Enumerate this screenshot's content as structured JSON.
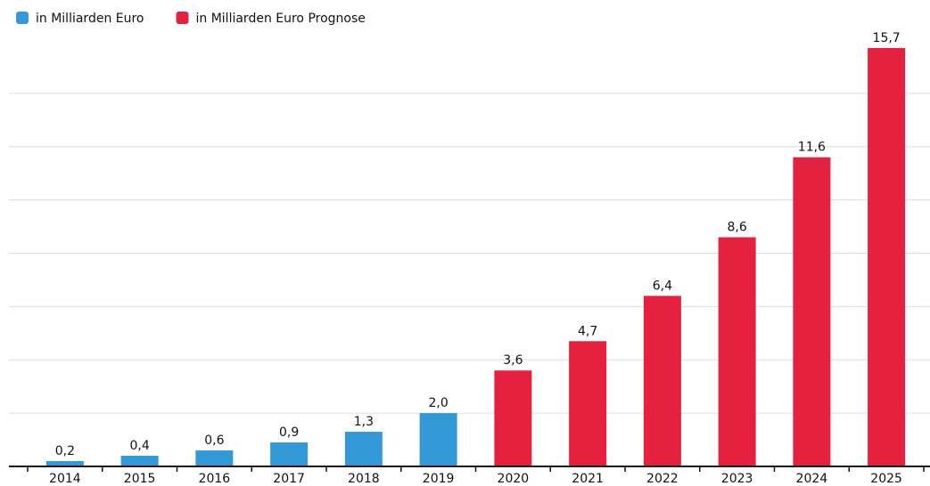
{
  "chart_data": {
    "type": "bar",
    "categories": [
      "2014",
      "2015",
      "2016",
      "2017",
      "2018",
      "2019",
      "2020",
      "2021",
      "2022",
      "2023",
      "2024",
      "2025"
    ],
    "series": [
      {
        "name": "in Milliarden Euro",
        "color": "#3399d6",
        "values": [
          0.2,
          0.4,
          0.6,
          0.9,
          1.3,
          2.0,
          null,
          null,
          null,
          null,
          null,
          null
        ],
        "value_labels": [
          "0,2",
          "0,4",
          "0,6",
          "0,9",
          "1,3",
          "2,0",
          null,
          null,
          null,
          null,
          null,
          null
        ]
      },
      {
        "name": "in Milliarden Euro Prognose",
        "color": "#e4213f",
        "values": [
          null,
          null,
          null,
          null,
          null,
          null,
          3.6,
          4.7,
          6.4,
          8.6,
          11.6,
          15.7
        ],
        "value_labels": [
          null,
          null,
          null,
          null,
          null,
          null,
          "3,6",
          "4,7",
          "6,4",
          "8,6",
          "11,6",
          "15,7"
        ]
      }
    ],
    "ylim": [
      0,
      16.5
    ],
    "yticks": [
      2,
      4,
      6,
      8,
      10,
      12,
      14
    ],
    "grid": true,
    "legend": "top-left"
  }
}
